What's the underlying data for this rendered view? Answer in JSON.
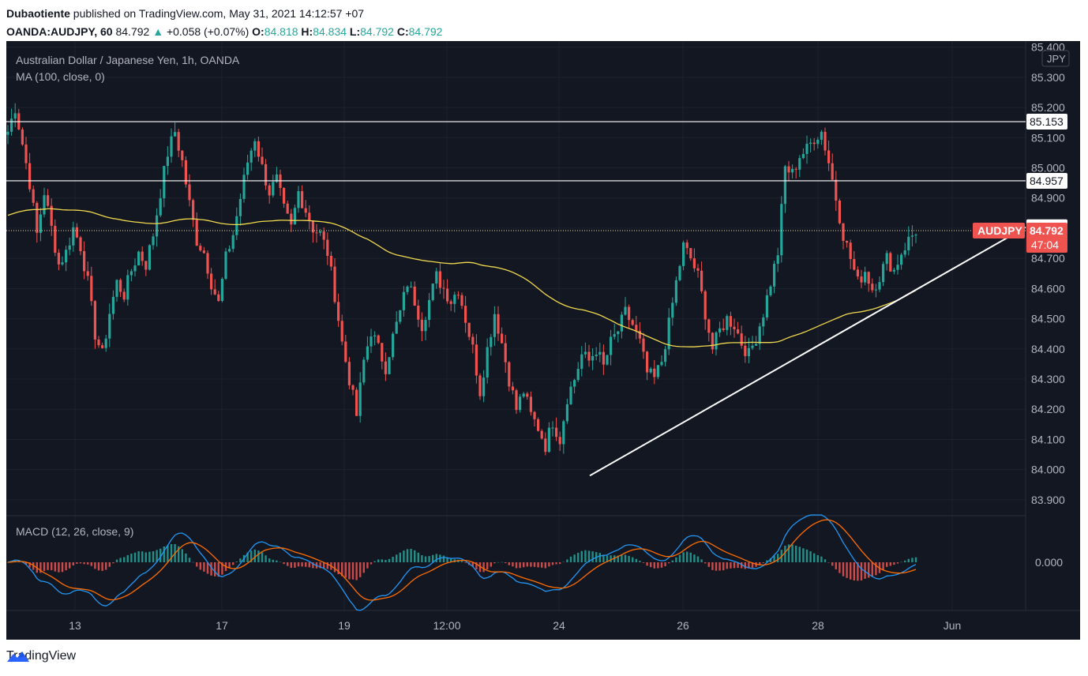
{
  "header": {
    "author": "Dubaotiente",
    "published_text": "published on TradingView.com, May 31, 2021 14:12:57 +07",
    "symbol": "OANDA:AUDJPY, 60",
    "last": "84.792",
    "change_arrow": "▲",
    "change": "+0.058 (+0.07%)",
    "o_label": "O:",
    "o": "84.818",
    "h_label": "H:",
    "h": "84.834",
    "l_label": "L:",
    "l": "84.792",
    "c_label": "C:",
    "c": "84.792"
  },
  "legend": {
    "title": "Australian Dollar / Japanese Yen, 1h, OANDA",
    "ma": "MA (100, close, 0)",
    "macd": "MACD (12, 26, close, 9)"
  },
  "footer": {
    "brand": "TradingView"
  },
  "colors": {
    "bg": "#131722",
    "up": "#26a69a",
    "down": "#ef5350",
    "ma": "#f1d94f",
    "macd": "#2196f3",
    "signal": "#ff6d00",
    "grid": "#1e222d",
    "axis_text": "#b2b5be"
  },
  "chart_data": {
    "type": "candlestick",
    "title": "Australian Dollar / Japanese Yen, 1h, OANDA",
    "currency": "JPY",
    "symbol_label": "AUDJPY",
    "last_price": "84.792",
    "countdown": "47:04",
    "y_ticks": [
      "83.900",
      "84.000",
      "84.100",
      "84.200",
      "84.300",
      "84.400",
      "84.500",
      "84.600",
      "84.700",
      "84.800",
      "84.900",
      "85.000",
      "85.100",
      "85.200",
      "85.300",
      "85.400"
    ],
    "ylim": [
      83.85,
      85.42
    ],
    "x_ticks": [
      "13",
      "17",
      "19",
      "12:00",
      "24",
      "26",
      "28",
      "Jun"
    ],
    "horizontal_levels": [
      {
        "price": 85.153,
        "label": "85.153"
      },
      {
        "price": 84.957,
        "label": "84.957"
      },
      {
        "price": 84.803,
        "label": "84.803"
      }
    ],
    "trendline": {
      "from": [
        "May 24",
        83.98
      ],
      "to": [
        "May 31",
        84.803
      ]
    },
    "ma_period": 100,
    "close_path": [
      [
        0,
        85.12
      ],
      [
        2,
        85.2
      ],
      [
        4,
        85.08
      ],
      [
        6,
        84.95
      ],
      [
        8,
        84.78
      ],
      [
        10,
        84.92
      ],
      [
        12,
        84.8
      ],
      [
        14,
        84.68
      ],
      [
        16,
        84.72
      ],
      [
        18,
        84.8
      ],
      [
        20,
        84.74
      ],
      [
        22,
        84.62
      ],
      [
        24,
        84.45
      ],
      [
        26,
        84.38
      ],
      [
        28,
        84.52
      ],
      [
        30,
        84.62
      ],
      [
        32,
        84.58
      ],
      [
        34,
        84.66
      ],
      [
        36,
        84.72
      ],
      [
        38,
        84.68
      ],
      [
        40,
        84.78
      ],
      [
        42,
        84.92
      ],
      [
        44,
        85.05
      ],
      [
        46,
        85.12
      ],
      [
        48,
        85.02
      ],
      [
        50,
        84.88
      ],
      [
        52,
        84.76
      ],
      [
        54,
        84.72
      ],
      [
        56,
        84.62
      ],
      [
        58,
        84.55
      ],
      [
        60,
        84.7
      ],
      [
        62,
        84.78
      ],
      [
        64,
        84.9
      ],
      [
        66,
        85.02
      ],
      [
        68,
        85.1
      ],
      [
        70,
        85.0
      ],
      [
        72,
        84.92
      ],
      [
        74,
        84.96
      ],
      [
        76,
        84.86
      ],
      [
        78,
        84.8
      ],
      [
        80,
        84.92
      ],
      [
        82,
        84.86
      ],
      [
        84,
        84.8
      ],
      [
        86,
        84.78
      ],
      [
        88,
        84.72
      ],
      [
        90,
        84.58
      ],
      [
        92,
        84.42
      ],
      [
        94,
        84.3
      ],
      [
        96,
        84.18
      ],
      [
        98,
        84.36
      ],
      [
        100,
        84.46
      ],
      [
        102,
        84.4
      ],
      [
        104,
        84.34
      ],
      [
        106,
        84.44
      ],
      [
        108,
        84.52
      ],
      [
        110,
        84.62
      ],
      [
        112,
        84.56
      ],
      [
        114,
        84.48
      ],
      [
        116,
        84.56
      ],
      [
        118,
        84.64
      ],
      [
        120,
        84.6
      ],
      [
        122,
        84.56
      ],
      [
        124,
        84.6
      ],
      [
        126,
        84.5
      ],
      [
        128,
        84.4
      ],
      [
        130,
        84.26
      ],
      [
        132,
        84.4
      ],
      [
        134,
        84.52
      ],
      [
        136,
        84.42
      ],
      [
        138,
        84.3
      ],
      [
        140,
        84.2
      ],
      [
        142,
        84.26
      ],
      [
        144,
        84.18
      ],
      [
        146,
        84.14
      ],
      [
        148,
        84.08
      ],
      [
        150,
        84.16
      ],
      [
        152,
        84.1
      ],
      [
        154,
        84.24
      ],
      [
        156,
        84.3
      ],
      [
        158,
        84.38
      ],
      [
        160,
        84.36
      ],
      [
        162,
        84.4
      ],
      [
        164,
        84.34
      ],
      [
        166,
        84.42
      ],
      [
        168,
        84.46
      ],
      [
        170,
        84.52
      ],
      [
        172,
        84.48
      ],
      [
        174,
        84.42
      ],
      [
        176,
        84.32
      ],
      [
        178,
        84.3
      ],
      [
        180,
        84.36
      ],
      [
        182,
        84.48
      ],
      [
        184,
        84.62
      ],
      [
        186,
        84.74
      ],
      [
        188,
        84.7
      ],
      [
        190,
        84.64
      ],
      [
        192,
        84.52
      ],
      [
        194,
        84.4
      ],
      [
        196,
        84.46
      ],
      [
        198,
        84.5
      ],
      [
        200,
        84.48
      ],
      [
        202,
        84.42
      ],
      [
        204,
        84.38
      ],
      [
        206,
        84.44
      ],
      [
        208,
        84.52
      ],
      [
        210,
        84.62
      ],
      [
        212,
        84.72
      ],
      [
        214,
        85.0
      ],
      [
        216,
        84.98
      ],
      [
        218,
        85.04
      ],
      [
        220,
        85.06
      ],
      [
        222,
        85.1
      ],
      [
        224,
        85.12
      ],
      [
        226,
        85.02
      ],
      [
        228,
        84.9
      ],
      [
        230,
        84.78
      ],
      [
        232,
        84.7
      ],
      [
        234,
        84.62
      ],
      [
        236,
        84.66
      ],
      [
        238,
        84.6
      ],
      [
        240,
        84.64
      ],
      [
        242,
        84.7
      ],
      [
        244,
        84.66
      ],
      [
        246,
        84.72
      ],
      [
        248,
        84.76
      ],
      [
        250,
        84.792
      ]
    ],
    "macd_series": [
      {
        "name": "MACD",
        "values": []
      },
      {
        "name": "Signal",
        "values": []
      }
    ],
    "macd_ytick": "0.000"
  }
}
